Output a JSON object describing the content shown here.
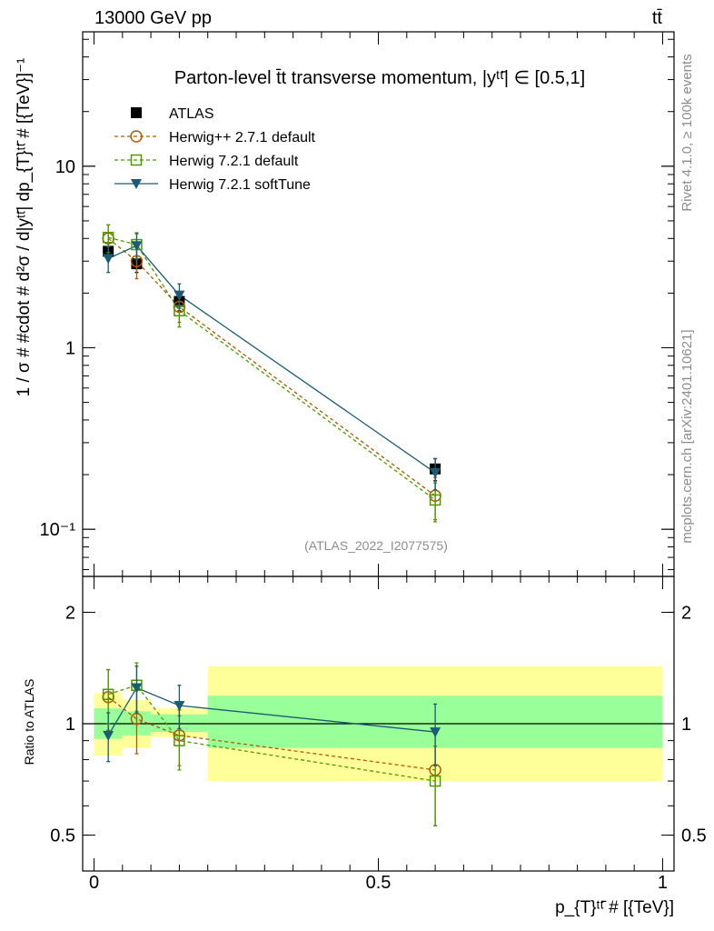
{
  "header": {
    "left": "13000 GeV pp",
    "right": "tt̄"
  },
  "side_labels": {
    "rivet": "Rivet 4.1.0, ≥ 100k events",
    "mcplots": "mcplots.cern.ch [arXiv:2401.10621]"
  },
  "chart_data": [
    {
      "type": "scatter",
      "panel": "main",
      "title": "Parton-level t̄t transverse momentum, |y^{tt̄}| ∈ [0.5,1]",
      "title_display": "Parton-level t̄t transverse momentum, |yᵗᵗ̄| ∈ [0.5,1]",
      "ylabel": "1 / σ # #cdot # d²σ / d|y^{tt̄}| dp_{T}^{tt̄} # [{TeV}⁻¹]",
      "ylabel_display": "1 / σ # #cdot # d²σ / d|yᵗᵗ̄| dp_{T}ᵗᵗ̄ # [{TeV}]⁻¹",
      "yscale": "log",
      "ylim": [
        0.055,
        55
      ],
      "xlim": [
        -0.02,
        1.02
      ],
      "yticks": [
        {
          "value": 0.1,
          "label": "10⁻¹"
        },
        {
          "value": 1,
          "label": "1"
        },
        {
          "value": 10,
          "label": "10"
        }
      ],
      "watermark": "(ATLAS_2022_I2077575)",
      "legend_position": "top-left",
      "series": [
        {
          "name": "ATLAS",
          "style": "data",
          "color": "#000000",
          "marker": "square-filled",
          "x": [
            0.025,
            0.075,
            0.15,
            0.6
          ],
          "y": [
            3.4,
            2.9,
            1.8,
            0.215
          ],
          "err": [
            0.35,
            0.3,
            0.2,
            0.03
          ]
        },
        {
          "name": "Herwig++ 2.7.1 default",
          "style": "dashed",
          "color": "#b35900",
          "marker": "circle-open",
          "x": [
            0.025,
            0.075,
            0.15,
            0.6
          ],
          "y": [
            4.0,
            3.0,
            1.68,
            0.153
          ],
          "err": [
            0.75,
            0.6,
            0.3,
            0.04
          ]
        },
        {
          "name": "Herwig 7.2.1 default",
          "style": "dashed",
          "color": "#4d9900",
          "marker": "square-open",
          "x": [
            0.025,
            0.075,
            0.15,
            0.6
          ],
          "y": [
            4.05,
            3.7,
            1.6,
            0.145
          ],
          "err": [
            0.7,
            0.6,
            0.3,
            0.035
          ]
        },
        {
          "name": "Herwig 7.2.1 softTune",
          "style": "solid",
          "color": "#1a5c73",
          "marker": "triangle-down-filled",
          "x": [
            0.025,
            0.075,
            0.15,
            0.6
          ],
          "y": [
            3.1,
            3.65,
            1.95,
            0.205
          ],
          "err": [
            0.5,
            0.6,
            0.3,
            0.04
          ]
        }
      ]
    },
    {
      "type": "scatter",
      "panel": "ratio",
      "ylabel": "Ratio to ATLAS",
      "xlabel": "p_{T}^{tt̄} # [{TeV}]",
      "xlabel_display": "p_{T}ᵗᵗ̄ # [{TeV}]",
      "yscale": "log",
      "ylim": [
        0.4,
        2.5
      ],
      "xlim": [
        -0.02,
        1.02
      ],
      "yticks": [
        {
          "value": 0.5,
          "label": "0.5"
        },
        {
          "value": 1,
          "label": "1"
        },
        {
          "value": 2,
          "label": "2"
        }
      ],
      "xticks": [
        {
          "value": 0,
          "label": "0"
        },
        {
          "value": 0.5,
          "label": "0.5"
        },
        {
          "value": 1,
          "label": "1"
        }
      ],
      "bands": [
        {
          "x0": 0.0,
          "x1": 0.05,
          "inner": [
            0.91,
            1.1
          ],
          "outer": [
            0.82,
            1.21
          ]
        },
        {
          "x0": 0.05,
          "x1": 0.1,
          "inner": [
            0.93,
            1.08
          ],
          "outer": [
            0.86,
            1.16
          ]
        },
        {
          "x0": 0.1,
          "x1": 0.2,
          "inner": [
            0.95,
            1.06
          ],
          "outer": [
            0.92,
            1.1
          ]
        },
        {
          "x0": 0.2,
          "x1": 1.0,
          "inner": [
            0.86,
            1.19
          ],
          "outer": [
            0.7,
            1.43
          ]
        }
      ],
      "band_colors": {
        "inner": "#99ff99",
        "outer": "#ffff99"
      },
      "series": [
        {
          "name": "Herwig++ 2.7.1 default",
          "style": "dashed",
          "color": "#b35900",
          "marker": "circle-open",
          "x": [
            0.025,
            0.075,
            0.15,
            0.6
          ],
          "y": [
            1.18,
            1.03,
            0.93,
            0.75
          ],
          "err": [
            0.22,
            0.2,
            0.16,
            0.22
          ]
        },
        {
          "name": "Herwig 7.2.1 default",
          "style": "dashed",
          "color": "#4d9900",
          "marker": "square-open",
          "x": [
            0.025,
            0.075,
            0.15,
            0.6
          ],
          "y": [
            1.2,
            1.27,
            0.9,
            0.7
          ],
          "err": [
            0.2,
            0.19,
            0.15,
            0.17
          ]
        },
        {
          "name": "Herwig 7.2.1 softTune",
          "style": "solid",
          "color": "#1a5c73",
          "marker": "triangle-down-filled",
          "x": [
            0.025,
            0.075,
            0.15,
            0.6
          ],
          "y": [
            0.93,
            1.25,
            1.12,
            0.95
          ],
          "err": [
            0.14,
            0.18,
            0.15,
            0.18
          ]
        }
      ]
    }
  ]
}
